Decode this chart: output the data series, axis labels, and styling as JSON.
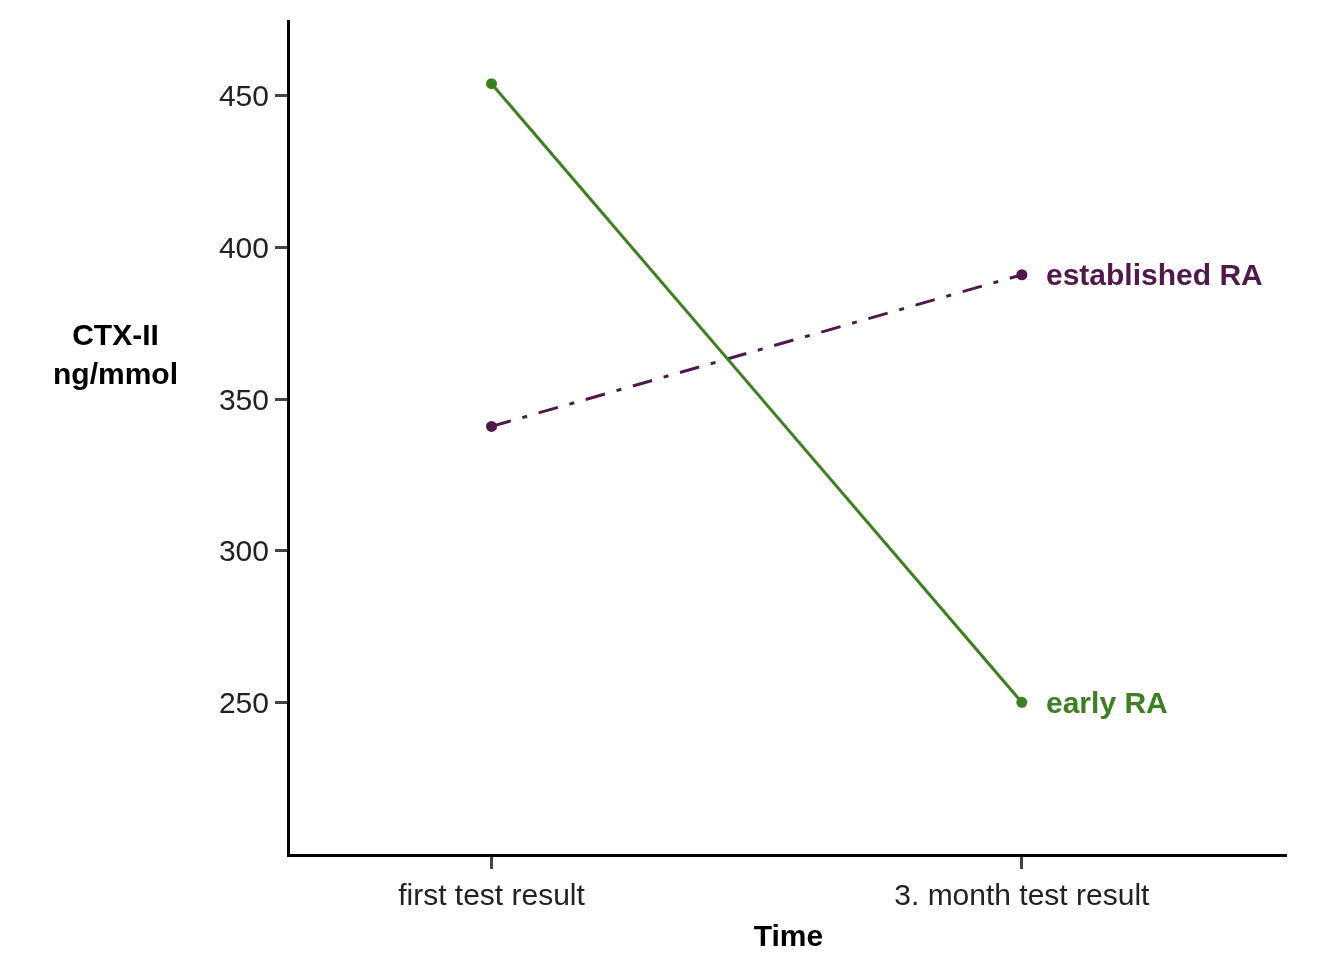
{
  "chart_data": {
    "type": "line",
    "xlabel": "Time",
    "ylabel": "CTX-II\nng/mmol",
    "categories": [
      "first test result",
      "3. month test result"
    ],
    "series": [
      {
        "name": "established RA",
        "color": "#4f1a4a",
        "values": [
          341,
          391
        ],
        "line_style": "dashdot"
      },
      {
        "name": "early RA",
        "color": "#3f7f24",
        "values": [
          454,
          250
        ],
        "line_style": "solid"
      }
    ],
    "ylim": [
      200,
      475
    ],
    "yticks": [
      250,
      300,
      350,
      400,
      450
    ],
    "legend": false,
    "marker": "circle"
  }
}
